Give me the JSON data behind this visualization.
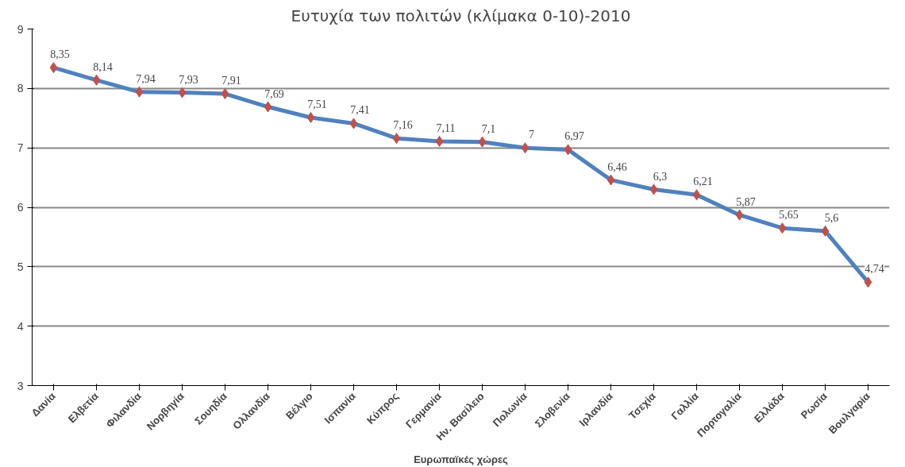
{
  "chart_data": {
    "type": "line",
    "title": "Ευτυχία των πολιτών (κλίμακα 0-10)-2010",
    "xlabel": "Ευρωπαϊκές χώρες",
    "categories": [
      "Δανία",
      "Ελβετία",
      "Φιλανδία",
      "Νορβηγία",
      "Σουηδία",
      "Ολλανδία",
      "Βέλγιο",
      "Ισπανία",
      "Κύπρος",
      "Γερμανία",
      "Ην. Βασίλειο",
      "Πολωνία",
      "Σλοβενία",
      "Ιρλανδία",
      "Τσεχία",
      "Γαλλία",
      "Πορτογαλία",
      "Ελλάδα",
      "Ρωσία",
      "Βουλγαρία"
    ],
    "series": [
      {
        "color": "#4f81bd",
        "values": [
          8.35,
          8.14,
          7.94,
          7.93,
          7.91,
          7.69,
          7.51,
          7.41,
          7.16,
          7.11,
          7.1,
          7,
          6.97,
          6.46,
          6.3,
          6.21,
          5.87,
          5.65,
          5.6,
          4.74
        ],
        "value_labels": [
          "8,35",
          "8,14",
          "7,94",
          "7,93",
          "7,91",
          "7,69",
          "7,51",
          "7,41",
          "7,16",
          "7,11",
          "7,1",
          "7",
          "6,97",
          "6,46",
          "6,3",
          "6,21",
          "5,87",
          "5,65",
          "5,6",
          "4,74"
        ],
        "colors": [
          "#c0504d",
          "#c0504d",
          "#c0504d",
          "#c0504d",
          "#c0504d",
          "#c0504d",
          "#c0504d",
          "#c0504d",
          "#c0504d",
          "#c0504d",
          "#c0504d",
          "#c0504d",
          "#c0504d",
          "#c0504d",
          "#c0504d",
          "#c0504d",
          "#c0504d",
          "#c0504d",
          "#c0504d",
          "#c0504d"
        ]
      }
    ],
    "ylim": [
      3,
      9
    ],
    "yticks": [
      3,
      4,
      5,
      6,
      7,
      8,
      9
    ],
    "grid": "y",
    "marker": "diamond",
    "line_style": "solid"
  }
}
